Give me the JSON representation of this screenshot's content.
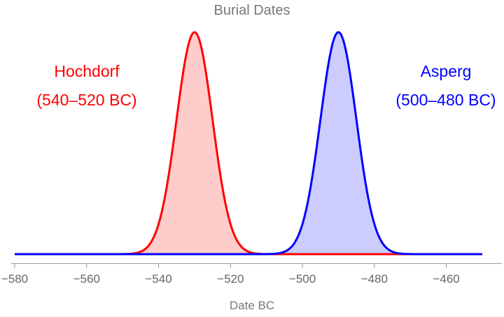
{
  "chart_data": {
    "type": "area",
    "title": "Burial Dates",
    "xlabel": "Date BC",
    "ylabel": "",
    "xlim": [
      -580,
      -450
    ],
    "xticks": [
      -580,
      -560,
      -540,
      -520,
      -500,
      -480,
      -460
    ],
    "xtick_labels": [
      "-580",
      "-560",
      "-540",
      "-520",
      "-500",
      "-480",
      "-460"
    ],
    "grid": false,
    "series": [
      {
        "name": "Hochdorf",
        "range_label": "(540–520 BC)",
        "mean": -530,
        "sd": 5,
        "color": "#ff0000",
        "fill": "#ffcccc"
      },
      {
        "name": "Asperg",
        "range_label": "(500–480 BC)",
        "mean": -490,
        "sd": 5,
        "color": "#0000ff",
        "fill": "#ccccff"
      }
    ]
  }
}
